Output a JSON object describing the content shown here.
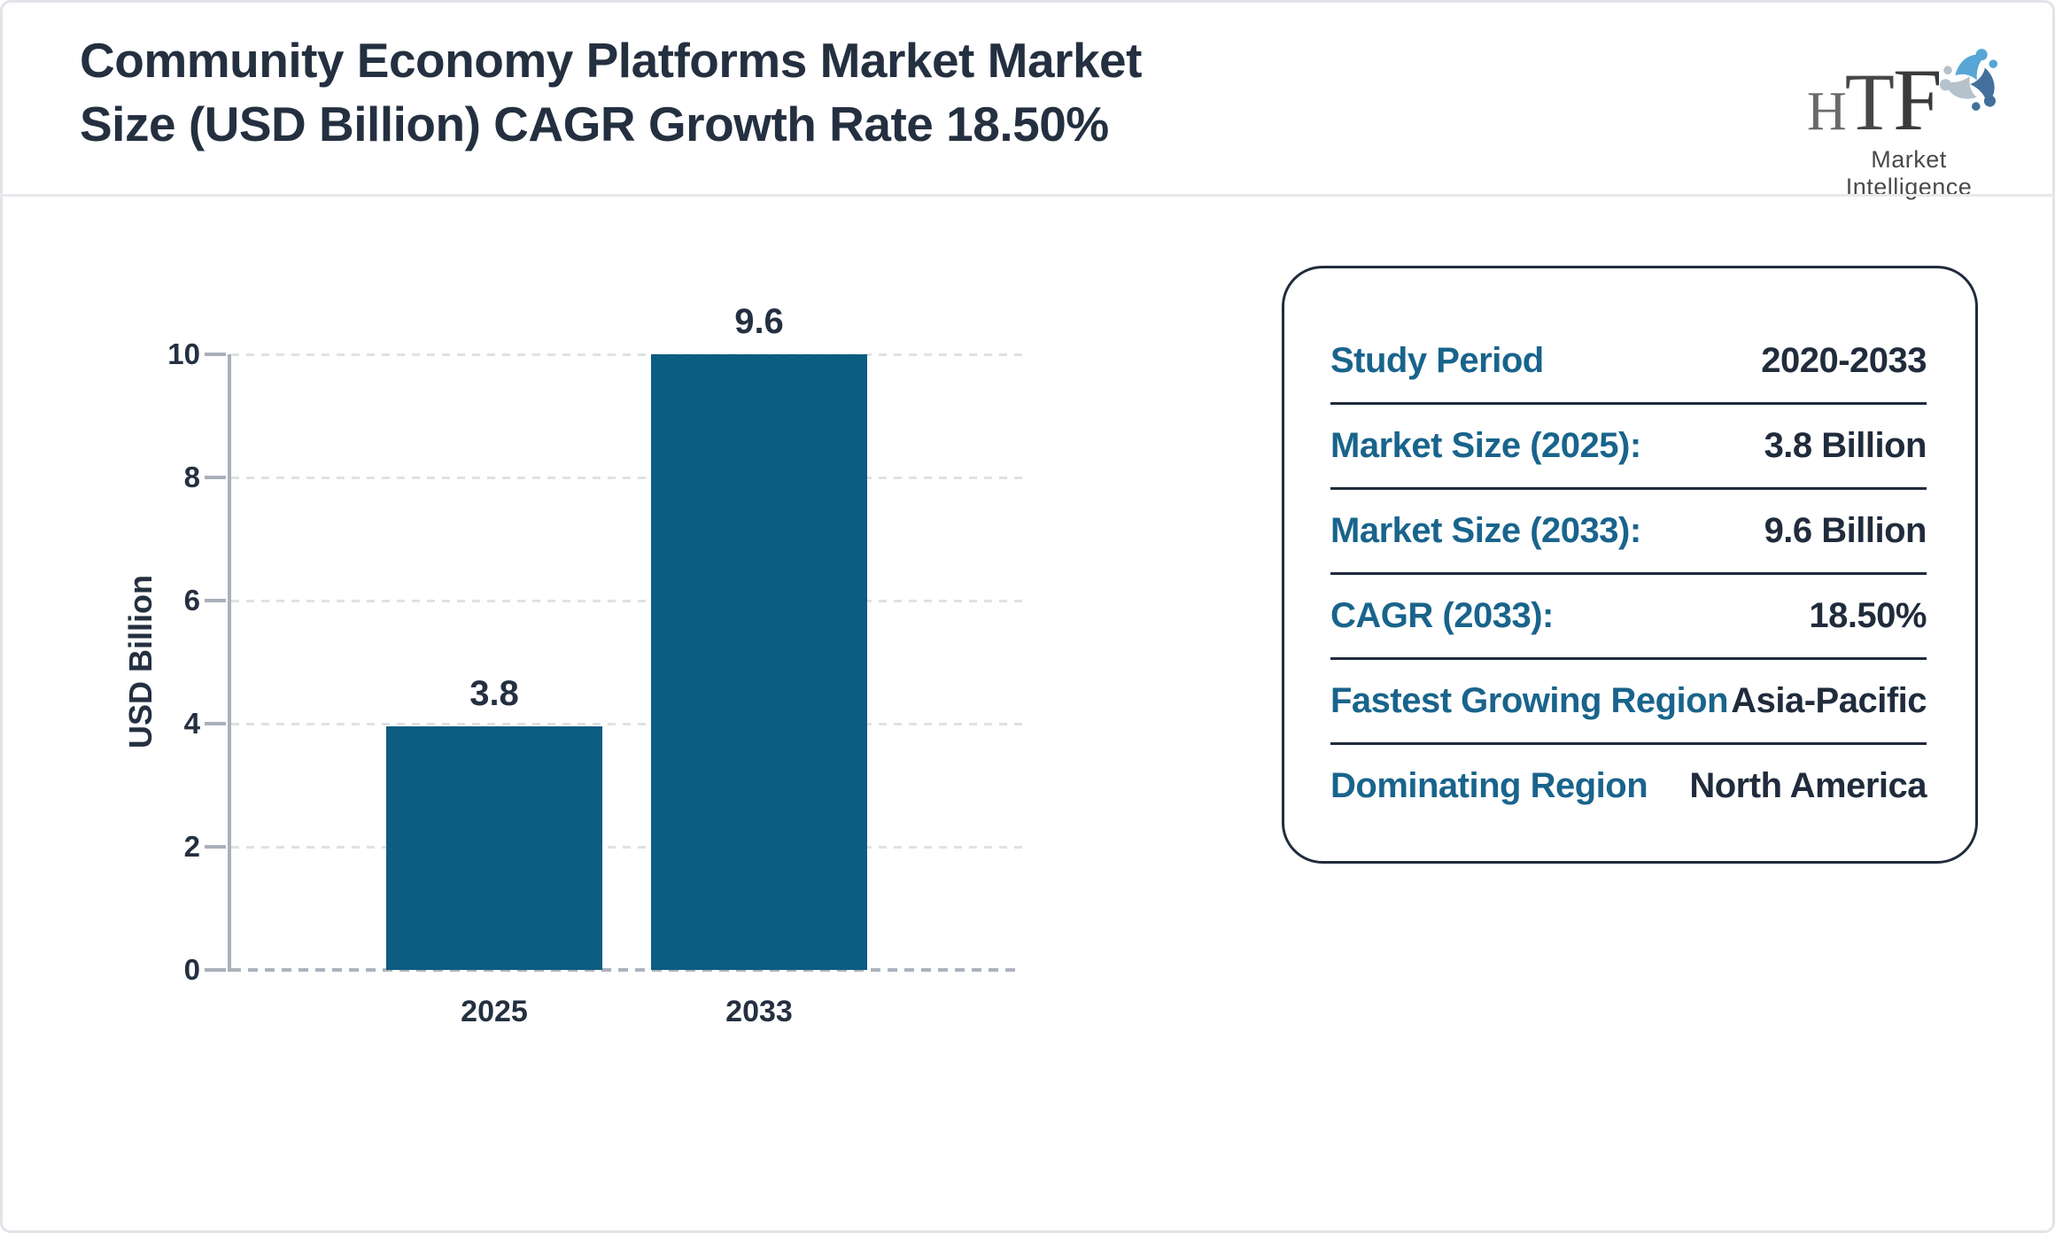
{
  "header": {
    "title_lines": [
      "Community Economy Platforms Market Market",
      "Size (USD Billion) CAGR Growth Rate 18.50%"
    ],
    "logo": {
      "letters": [
        "H",
        "T",
        "F"
      ],
      "subtext": "Market Intelligence"
    }
  },
  "chart_data": {
    "type": "bar",
    "title": "Community Economy Platforms Market Market Size (USD Billion) CAGR Growth Rate 18.50%",
    "categories": [
      "2025",
      "2033"
    ],
    "values": [
      3.8,
      9.6
    ],
    "value_labels": [
      "3.8",
      "9.6"
    ],
    "xlabel": "",
    "ylabel": "USD Billion",
    "ylim": [
      0,
      10
    ],
    "yticks": [
      0,
      2,
      4,
      6,
      8,
      10
    ],
    "grid": "horizontal-dashed",
    "legend": "none",
    "bar_color": "#0d5c82",
    "bar_value_color": "#243040",
    "note": "bars drawn scaled so the 9.6 bar tops out at the 10 gridline"
  },
  "info_panel": {
    "label_color": "#19648c",
    "value_color": "#202c3c",
    "rows": [
      {
        "label": "Study Period",
        "value": "2020-2033"
      },
      {
        "label": "Market Size (2025):",
        "value": "3.8 Billion"
      },
      {
        "label": "Market Size (2033):",
        "value": "9.6 Billion"
      },
      {
        "label": "CAGR (2033):",
        "value": "18.50%"
      },
      {
        "label": "Fastest Growing Region",
        "value": "Asia-Pacific"
      },
      {
        "label": "Dominating Region",
        "value": "North America"
      }
    ]
  }
}
